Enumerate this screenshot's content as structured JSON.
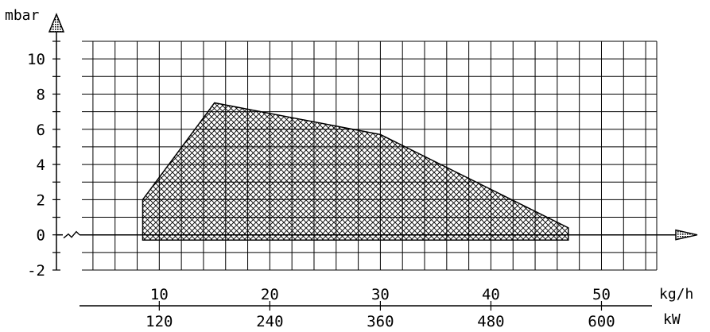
{
  "chart_data": {
    "type": "area",
    "title": "",
    "ylabel": "mbar",
    "xlabel": "kg/h",
    "x2label": "kW",
    "ylim": [
      -2,
      11
    ],
    "xlim": [
      3,
      55
    ],
    "grid": true,
    "y_ticks": [
      {
        "value": -2,
        "label": "-2"
      },
      {
        "value": 0,
        "label": "0"
      },
      {
        "value": 2,
        "label": "2"
      },
      {
        "value": 4,
        "label": "4"
      },
      {
        "value": 6,
        "label": "6"
      },
      {
        "value": 8,
        "label": "8"
      },
      {
        "value": 10,
        "label": "10"
      }
    ],
    "x_ticks": [
      {
        "value": 10,
        "label": "10"
      },
      {
        "value": 20,
        "label": "20"
      },
      {
        "value": 30,
        "label": "30"
      },
      {
        "value": 40,
        "label": "40"
      },
      {
        "value": 50,
        "label": "50"
      }
    ],
    "x2_ticks": [
      {
        "value": 10,
        "label": "120"
      },
      {
        "value": 20,
        "label": "240"
      },
      {
        "value": 30,
        "label": "360"
      },
      {
        "value": 40,
        "label": "480"
      },
      {
        "value": 50,
        "label": "600"
      }
    ],
    "series": [
      {
        "name": "",
        "x": [
          8.5,
          8.5,
          15,
          30,
          47,
          47
        ],
        "y": [
          -0.3,
          2,
          7.5,
          5.7,
          0.4,
          -0.3
        ]
      }
    ],
    "colors": {
      "fill_hatch": "#000000",
      "grid": "#000000",
      "background": "#ffffff"
    }
  }
}
